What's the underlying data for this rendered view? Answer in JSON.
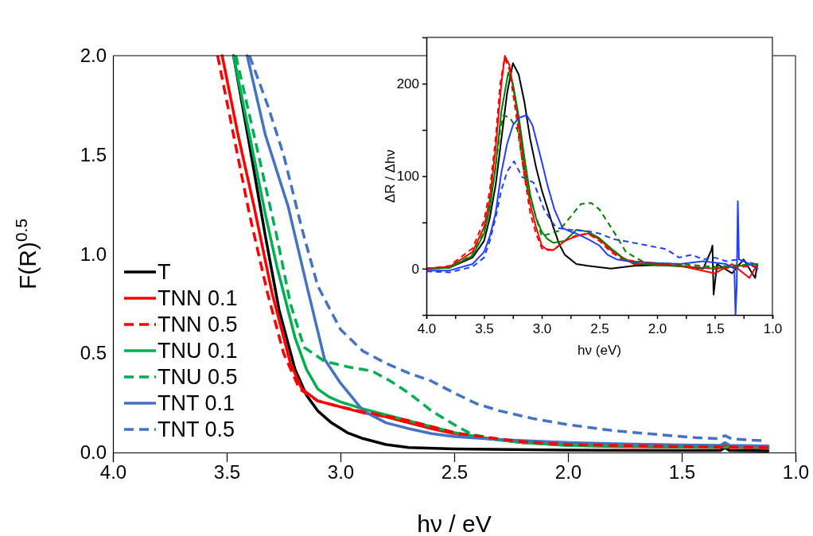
{
  "chart_data": [
    {
      "type": "line",
      "xlabel": "hν / eV",
      "ylabel": "F(R)$^{0.5}$",
      "xlim": [
        4,
        1
      ],
      "ylim": [
        0,
        2
      ],
      "xticks": [
        {
          "value": 4,
          "label": "4.0"
        },
        {
          "value": 3.5,
          "label": "3.5"
        },
        {
          "value": 3,
          "label": "3.0"
        },
        {
          "value": 2.5,
          "label": "2.5"
        },
        {
          "value": 2,
          "label": "2.0"
        },
        {
          "value": 1.5,
          "label": "1.5"
        },
        {
          "value": 1,
          "label": "1.0"
        }
      ],
      "yticks": [
        {
          "value": 0,
          "label": "0.0"
        },
        {
          "value": 0.5,
          "label": "0.5"
        },
        {
          "value": 1,
          "label": "1.0"
        },
        {
          "value": 1.5,
          "label": "1.5"
        },
        {
          "value": 2,
          "label": "2.0"
        }
      ],
      "legend": "bottom left",
      "marker": "none",
      "series": [
        {
          "name": "T",
          "color": "#000000",
          "line_style": "solid",
          "x": [
            3.47,
            3.4,
            3.33,
            3.27,
            3.2,
            3.15,
            3.1,
            3.04,
            2.97,
            2.9,
            2.8,
            2.7,
            2.5,
            2.0,
            1.5,
            1.33,
            1.31,
            1.29,
            1.12
          ],
          "values": [
            2.0,
            1.55,
            1.09,
            0.72,
            0.42,
            0.29,
            0.21,
            0.15,
            0.1,
            0.07,
            0.04,
            0.025,
            0.018,
            0.012,
            0.01,
            0.01,
            0.025,
            0.01,
            0.008
          ]
        },
        {
          "name": "TNN 0.1",
          "color": "#ff0000",
          "line_style": "solid",
          "x": [
            3.52,
            3.45,
            3.38,
            3.3,
            3.22,
            3.17,
            3.1,
            3.0,
            2.9,
            2.8,
            2.7,
            2.6,
            2.5,
            2.35,
            2.2,
            2.0,
            1.8,
            1.5,
            1.33,
            1.31,
            1.29,
            1.12
          ],
          "values": [
            2.0,
            1.6,
            1.24,
            0.8,
            0.45,
            0.32,
            0.26,
            0.23,
            0.2,
            0.18,
            0.15,
            0.12,
            0.095,
            0.07,
            0.05,
            0.037,
            0.03,
            0.027,
            0.025,
            0.04,
            0.025,
            0.022
          ]
        },
        {
          "name": "TNN 0.5",
          "color": "#ff0000",
          "line_style": "dashed",
          "x": [
            3.54,
            3.47,
            3.4,
            3.32,
            3.25,
            3.18,
            3.1,
            3.0,
            2.9,
            2.8,
            2.7,
            2.6,
            2.5,
            2.35,
            2.2,
            2.0,
            1.5,
            1.12
          ],
          "values": [
            2.0,
            1.6,
            1.2,
            0.8,
            0.5,
            0.32,
            0.26,
            0.23,
            0.205,
            0.185,
            0.16,
            0.13,
            0.1,
            0.075,
            0.055,
            0.04,
            0.03,
            0.025
          ]
        },
        {
          "name": "TNU 0.1",
          "color": "#00b050",
          "line_style": "solid",
          "x": [
            3.47,
            3.4,
            3.33,
            3.28,
            3.2,
            3.15,
            3.1,
            3.05,
            3.0,
            2.9,
            2.8,
            2.7,
            2.6,
            2.5,
            2.35,
            2.2,
            2.0,
            1.5,
            1.12
          ],
          "values": [
            2.0,
            1.6,
            1.2,
            0.94,
            0.58,
            0.42,
            0.32,
            0.28,
            0.255,
            0.22,
            0.19,
            0.16,
            0.13,
            0.1,
            0.07,
            0.05,
            0.035,
            0.028,
            0.025
          ]
        },
        {
          "name": "TNU 0.5",
          "color": "#00b050",
          "line_style": "dashed",
          "x": [
            3.46,
            3.38,
            3.28,
            3.22,
            3.16,
            3.07,
            2.96,
            2.86,
            2.78,
            2.7,
            2.6,
            2.5,
            2.42,
            2.3,
            2.2,
            2.0,
            1.5,
            1.12
          ],
          "values": [
            2.0,
            1.6,
            1.09,
            0.75,
            0.53,
            0.46,
            0.43,
            0.41,
            0.36,
            0.3,
            0.21,
            0.14,
            0.09,
            0.065,
            0.05,
            0.037,
            0.03,
            0.025
          ]
        },
        {
          "name": "TNT 0.1",
          "color": "#4472c4",
          "line_style": "solid",
          "x": [
            3.41,
            3.33,
            3.23,
            3.15,
            3.07,
            3.0,
            2.9,
            2.8,
            2.7,
            2.6,
            2.5,
            2.3,
            2.0,
            1.7,
            1.5,
            1.33,
            1.31,
            1.29,
            1.12
          ],
          "values": [
            2.0,
            1.6,
            1.24,
            0.85,
            0.47,
            0.35,
            0.21,
            0.15,
            0.12,
            0.095,
            0.08,
            0.065,
            0.05,
            0.042,
            0.038,
            0.036,
            0.05,
            0.036,
            0.033
          ]
        },
        {
          "name": "TNT 0.5",
          "color": "#4472c4",
          "line_style": "dashed",
          "x": [
            3.4,
            3.32,
            3.25,
            3.17,
            3.1,
            3.0,
            2.9,
            2.8,
            2.7,
            2.6,
            2.5,
            2.4,
            2.3,
            2.15,
            2.0,
            1.8,
            1.6,
            1.44,
            1.34,
            1.31,
            1.28,
            1.15
          ],
          "values": [
            2.0,
            1.75,
            1.5,
            1.13,
            0.84,
            0.62,
            0.51,
            0.45,
            0.4,
            0.36,
            0.3,
            0.245,
            0.21,
            0.17,
            0.14,
            0.11,
            0.09,
            0.075,
            0.07,
            0.085,
            0.068,
            0.06
          ]
        }
      ]
    },
    {
      "type": "line",
      "xlabel": "hν (eV)",
      "ylabel": "ΔR / Δhν",
      "xlim": [
        4,
        1
      ],
      "ylim": [
        -50,
        250
      ],
      "xticks": [
        {
          "value": 4,
          "label": "4.0"
        },
        {
          "value": 3.75,
          "label": null
        },
        {
          "value": 3.5,
          "label": "3.5"
        },
        {
          "value": 3.25,
          "label": null
        },
        {
          "value": 3,
          "label": "3.0"
        },
        {
          "value": 2.75,
          "label": null
        },
        {
          "value": 2.5,
          "label": "2.5"
        },
        {
          "value": 2.25,
          "label": null
        },
        {
          "value": 2,
          "label": "2.0"
        },
        {
          "value": 1.75,
          "label": null
        },
        {
          "value": 1.5,
          "label": "1.5"
        },
        {
          "value": 1.25,
          "label": null
        },
        {
          "value": 1,
          "label": "1.0"
        }
      ],
      "yticks": [
        0,
        {
          "value": 50,
          "label": null
        },
        100,
        {
          "value": 150,
          "label": null
        },
        200
      ],
      "marker": "none",
      "series": [
        {
          "color": "#000000",
          "line_style": "solid",
          "x": [
            4.0,
            3.8,
            3.6,
            3.5,
            3.45,
            3.4,
            3.35,
            3.3,
            3.25,
            3.2,
            3.15,
            3.1,
            3.05,
            3.0,
            2.95,
            2.9,
            2.85,
            2.8,
            2.7,
            2.6,
            2.4,
            2.2,
            2.0,
            1.8,
            1.6,
            1.53,
            1.52,
            1.51,
            1.48,
            1.35,
            1.25,
            1.15,
            1.13
          ],
          "values": [
            0,
            1,
            12,
            30,
            55,
            90,
            140,
            190,
            222,
            210,
            180,
            140,
            110,
            85,
            65,
            45,
            27,
            15,
            5,
            3,
            0,
            3,
            4,
            3,
            0,
            20,
            25,
            -28,
            5,
            -5,
            10,
            -10,
            5
          ]
        },
        {
          "color": "#ff0000",
          "line_style": "solid",
          "x": [
            4.0,
            3.8,
            3.6,
            3.5,
            3.45,
            3.4,
            3.35,
            3.32,
            3.28,
            3.22,
            3.15,
            3.1,
            3.05,
            3.0,
            2.95,
            2.9,
            2.8,
            2.7,
            2.6,
            2.5,
            2.4,
            2.3,
            2.2,
            2.0,
            1.8,
            1.5,
            1.35,
            1.2,
            1.13
          ],
          "values": [
            0,
            2,
            18,
            45,
            75,
            130,
            200,
            230,
            220,
            175,
            110,
            70,
            45,
            25,
            20,
            20,
            30,
            35,
            38,
            32,
            20,
            12,
            5,
            5,
            3,
            -5,
            5,
            -10,
            5
          ]
        },
        {
          "color": "#ff0000",
          "line_style": "dashed",
          "x": [
            4.0,
            3.8,
            3.6,
            3.5,
            3.45,
            3.4,
            3.36,
            3.32,
            3.28,
            3.22,
            3.15,
            3.1,
            3.05,
            3.0,
            2.9,
            2.8,
            2.7,
            2.6,
            2.5,
            2.4,
            2.3,
            2.0,
            1.5,
            1.13
          ],
          "values": [
            0,
            3,
            22,
            52,
            85,
            140,
            200,
            228,
            215,
            165,
            100,
            60,
            38,
            22,
            20,
            30,
            36,
            38,
            30,
            18,
            10,
            5,
            0,
            3
          ]
        },
        {
          "color": "#008000",
          "line_style": "solid",
          "x": [
            4.0,
            3.8,
            3.6,
            3.5,
            3.45,
            3.4,
            3.35,
            3.29,
            3.25,
            3.2,
            3.15,
            3.1,
            3.05,
            3.0,
            2.95,
            2.9,
            2.8,
            2.7,
            2.6,
            2.5,
            2.4,
            2.3,
            2.2,
            2.0,
            1.5,
            1.13
          ],
          "values": [
            0,
            1,
            14,
            38,
            65,
            110,
            170,
            212,
            200,
            165,
            120,
            80,
            55,
            40,
            32,
            28,
            30,
            42,
            40,
            33,
            22,
            12,
            6,
            4,
            0,
            5
          ]
        },
        {
          "color": "#008000",
          "line_style": "dashed",
          "x": [
            4.0,
            3.8,
            3.6,
            3.5,
            3.45,
            3.4,
            3.36,
            3.33,
            3.27,
            3.21,
            3.14,
            3.07,
            3.0,
            2.85,
            2.66,
            2.57,
            2.5,
            2.38,
            2.27,
            2.1,
            1.8,
            1.5,
            1.13
          ],
          "values": [
            0,
            1,
            15,
            40,
            70,
            110,
            150,
            166,
            162,
            150,
            93,
            64,
            35,
            41,
            70,
            71,
            64,
            41,
            18,
            6,
            5,
            2,
            5
          ]
        },
        {
          "color": "#2040ff",
          "line_style": "solid",
          "x": [
            4.0,
            3.8,
            3.6,
            3.5,
            3.45,
            3.4,
            3.35,
            3.3,
            3.25,
            3.2,
            3.13,
            3.08,
            3.0,
            2.95,
            2.89,
            2.82,
            2.75,
            2.7,
            2.6,
            2.5,
            2.43,
            2.35,
            2.25,
            2.0,
            1.8,
            1.6,
            1.4,
            1.33,
            1.32,
            1.31,
            1.3,
            1.29,
            1.2,
            1.13
          ],
          "values": [
            -2,
            -2,
            5,
            18,
            35,
            60,
            104,
            135,
            155,
            163,
            166,
            155,
            116,
            90,
            64,
            44,
            40,
            38,
            32,
            25,
            15,
            10,
            8,
            6,
            5,
            8,
            5,
            0,
            -50,
            -20,
            73,
            10,
            5,
            0
          ]
        },
        {
          "color": "#2040ff",
          "line_style": "dashed",
          "x": [
            4.0,
            3.8,
            3.6,
            3.5,
            3.45,
            3.4,
            3.35,
            3.3,
            3.24,
            3.17,
            3.07,
            2.98,
            2.92,
            2.87,
            2.75,
            2.62,
            2.5,
            2.38,
            2.16,
            1.92,
            1.81,
            1.7,
            1.6,
            1.5,
            1.4,
            1.3,
            1.15
          ],
          "values": [
            -3,
            -4,
            2,
            12,
            30,
            55,
            85,
            105,
            116,
            99,
            93,
            64,
            52,
            44,
            42,
            41,
            38,
            32,
            27,
            21,
            12,
            15,
            10,
            12,
            8,
            10,
            5
          ]
        }
      ]
    }
  ]
}
